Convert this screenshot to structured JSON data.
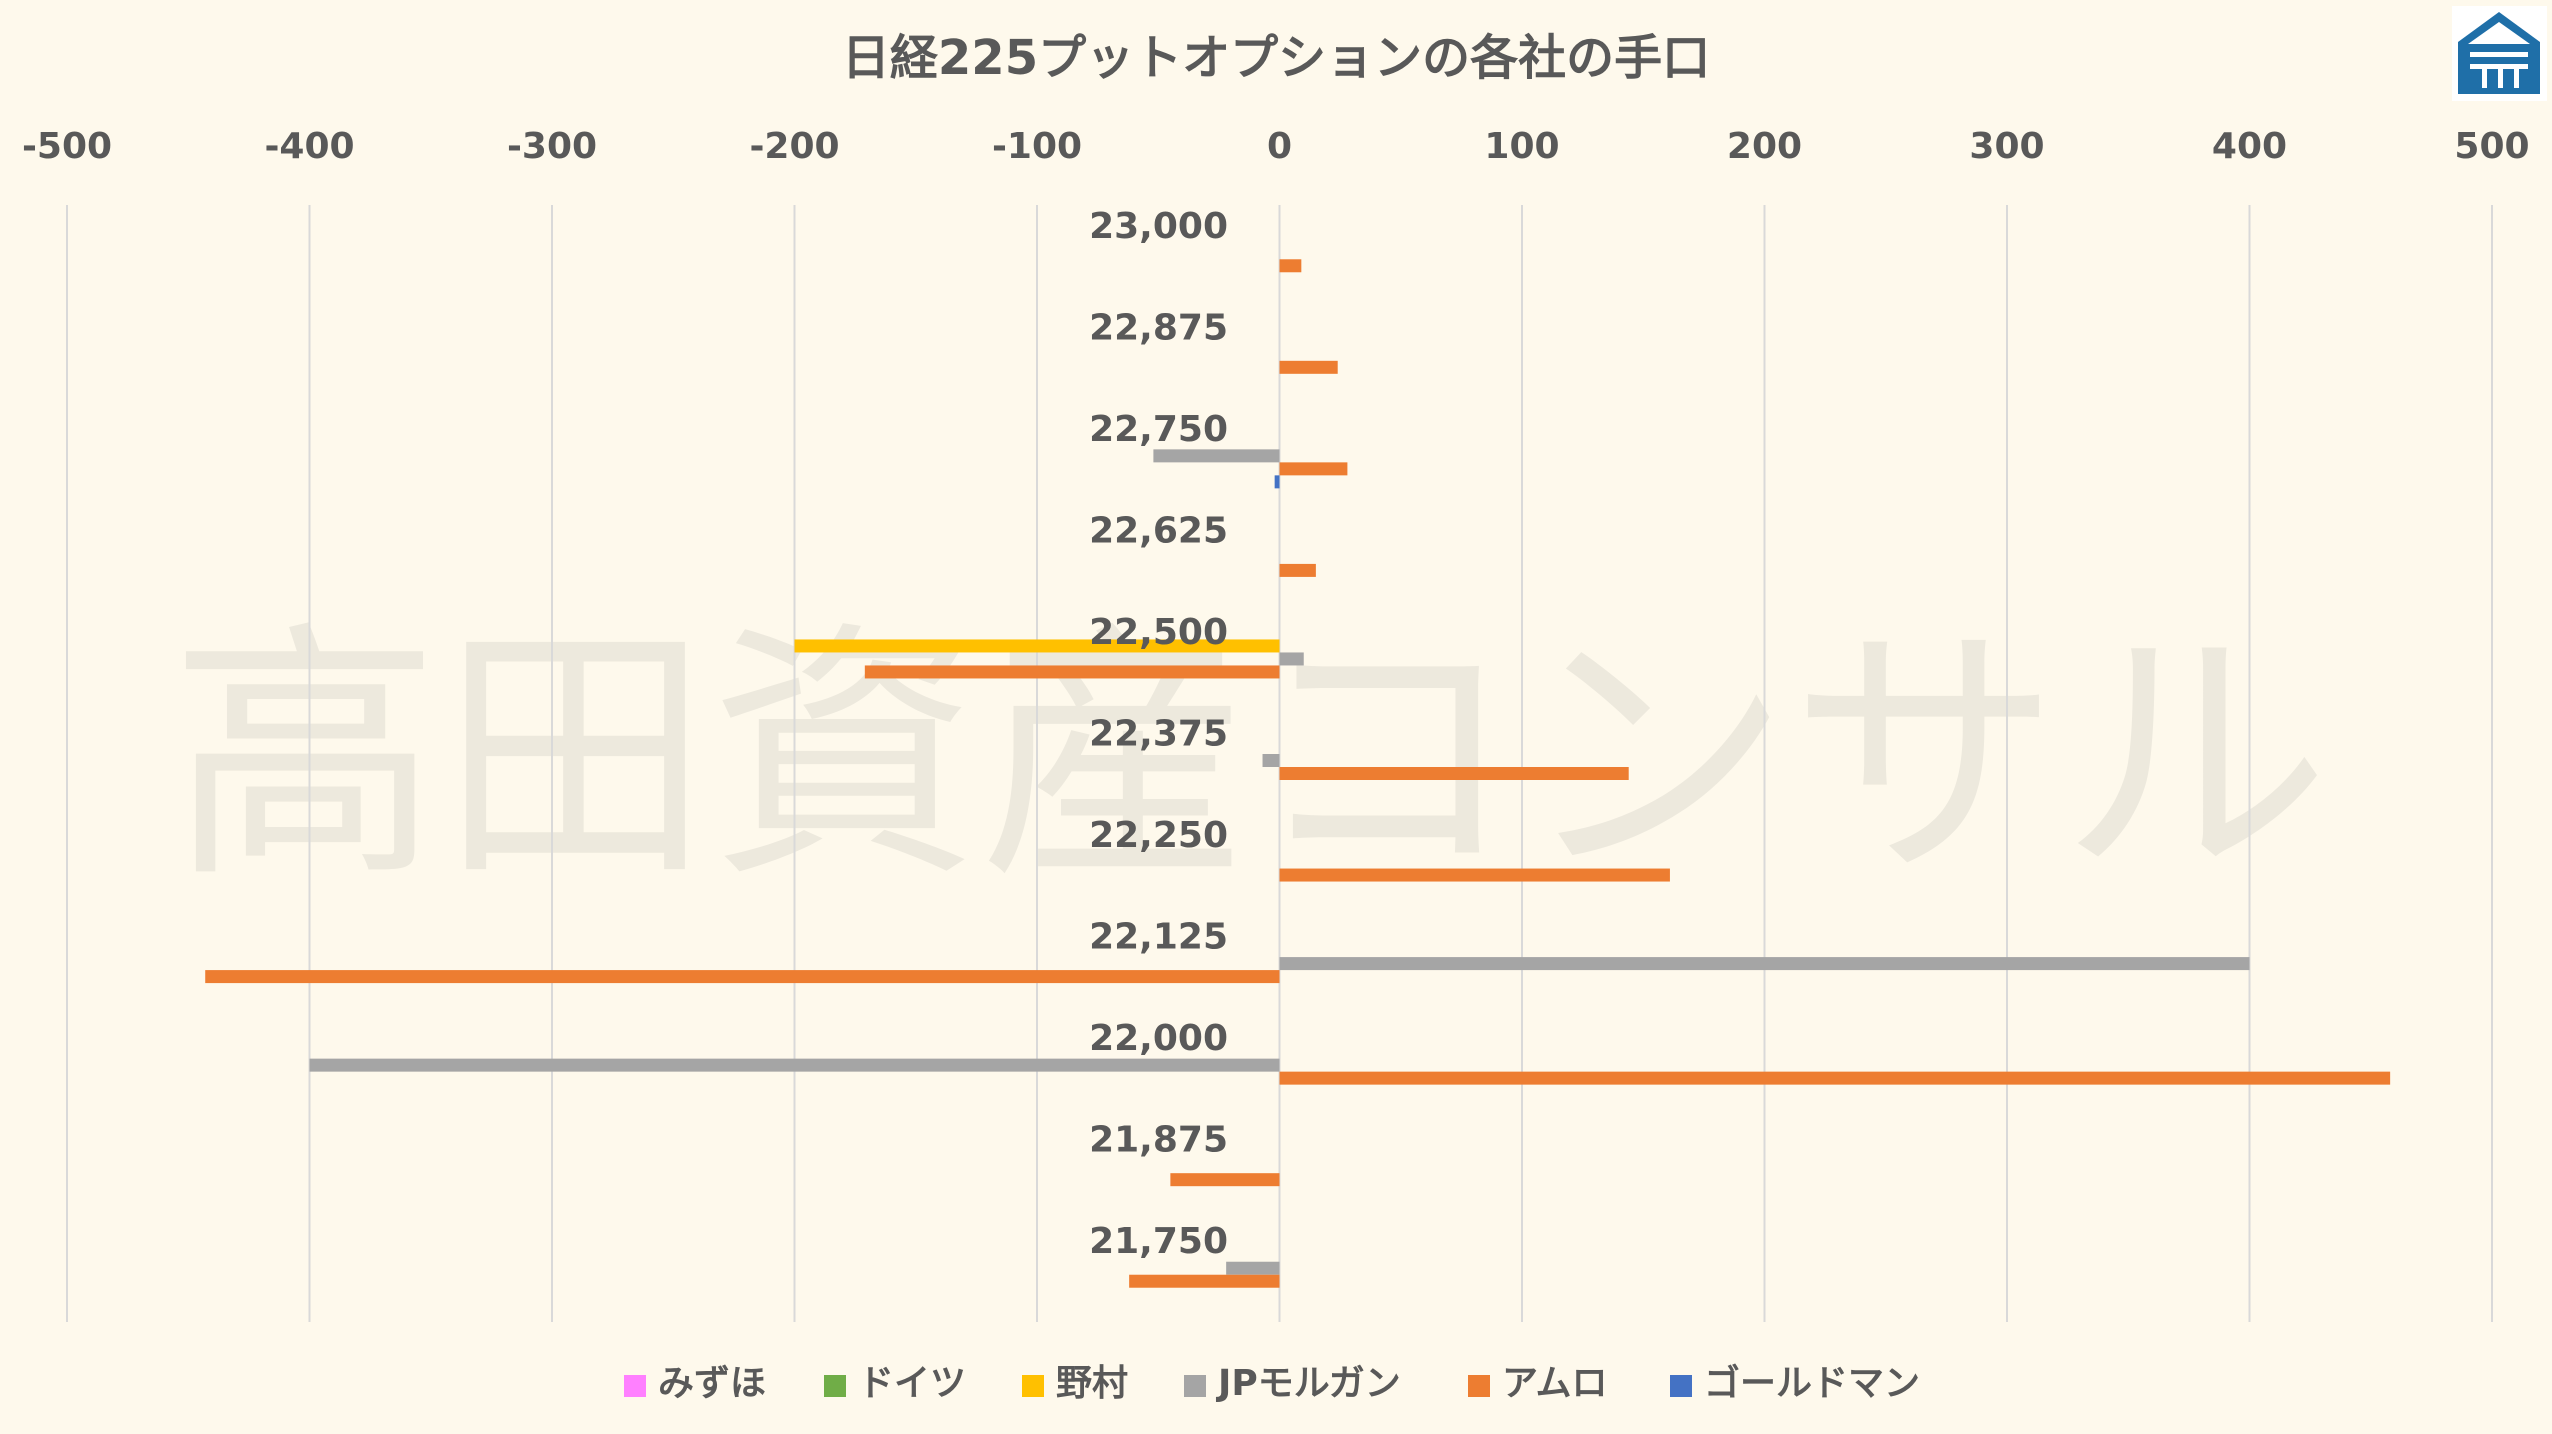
{
  "chart_data": {
    "type": "bar",
    "orientation": "horizontal",
    "title": "日経225プットオプションの各社の手口",
    "xlim": [
      -500,
      500
    ],
    "x_ticks": [
      "-500",
      "-400",
      "-300",
      "-200",
      "-100",
      "0",
      "100",
      "200",
      "300",
      "400",
      "500"
    ],
    "x_tick_values": [
      -500,
      -400,
      -300,
      -200,
      -100,
      0,
      100,
      200,
      300,
      400,
      500
    ],
    "categories": [
      "23,000",
      "22,875",
      "22,750",
      "22,625",
      "22,500",
      "22,375",
      "22,250",
      "22,125",
      "22,000",
      "21,875",
      "21,750"
    ],
    "grid": true,
    "legend_position": "bottom",
    "series": [
      {
        "name": "みずほ",
        "color": "#ff80ff",
        "values": [
          0,
          0,
          0,
          0,
          0,
          0,
          0,
          0,
          0,
          0,
          0
        ]
      },
      {
        "name": "ドイツ",
        "color": "#70ad47",
        "values": [
          0,
          0,
          0,
          0,
          0,
          0,
          0,
          0,
          0,
          0,
          0
        ]
      },
      {
        "name": "野村",
        "color": "#ffc000",
        "values": [
          0,
          0,
          0,
          0,
          -200,
          0,
          0,
          0,
          0,
          0,
          0
        ]
      },
      {
        "name": "JPモルガン",
        "color": "#a5a5a5",
        "values": [
          0,
          0,
          -52,
          0,
          10,
          -7,
          0,
          400,
          -400,
          0,
          -22
        ]
      },
      {
        "name": "アムロ",
        "color": "#ed7d31",
        "values": [
          9,
          24,
          28,
          15,
          -171,
          144,
          161,
          -443,
          458,
          -45,
          -62
        ]
      },
      {
        "name": "ゴールドマン",
        "color": "#4472c4",
        "values": [
          0,
          0,
          -2,
          0,
          0,
          0,
          0,
          0,
          0,
          0,
          0
        ]
      }
    ]
  },
  "watermark": "高田資産コンサル",
  "logo": {
    "name": "house-logo",
    "color": "#1f6fa8"
  }
}
